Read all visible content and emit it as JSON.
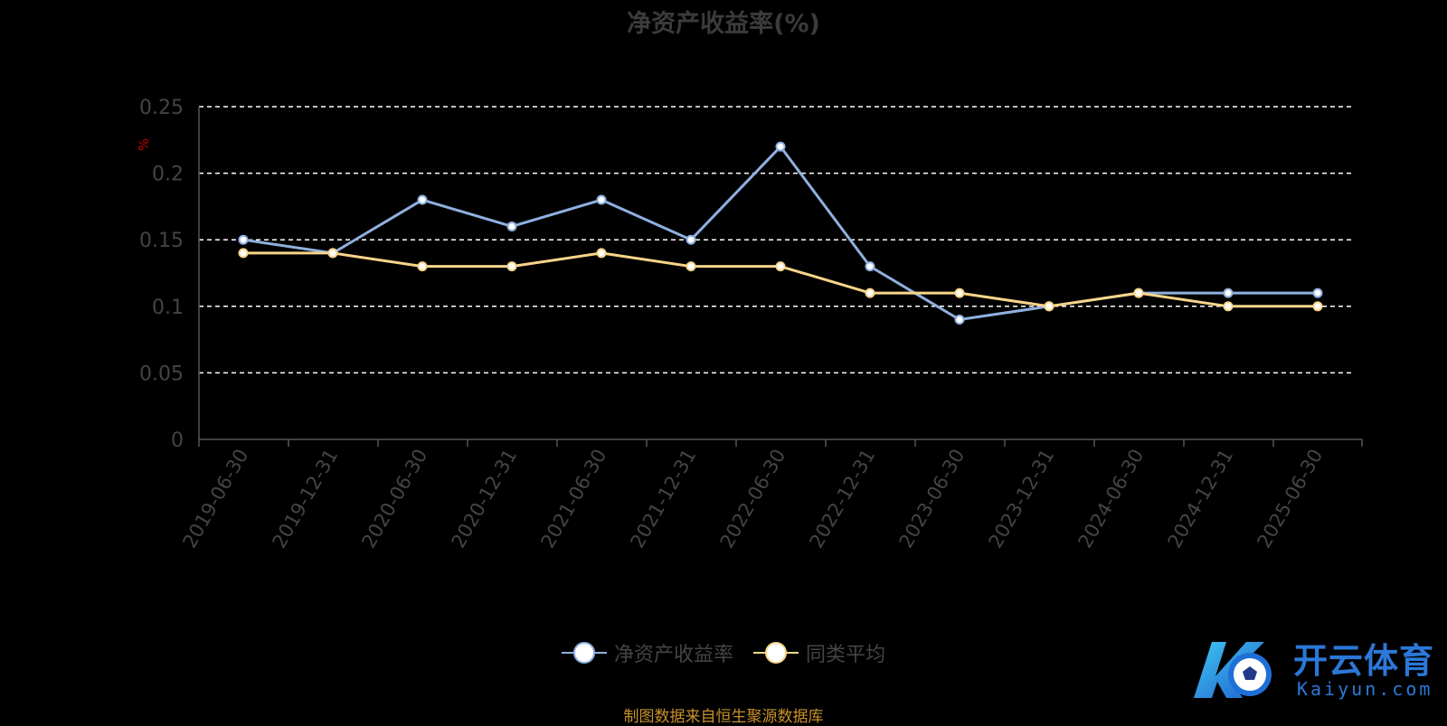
{
  "title": "净资产收益率(%)",
  "source": "制图数据来自恒生聚源数据库",
  "logo": {
    "cn": "开云体育",
    "en": "Kaiyun.com",
    "mark": "K"
  },
  "colors": {
    "series1": "#8fb0e0",
    "series2": "#f8d58a",
    "grid": "#ffffff",
    "axis": "#555555",
    "tick": "#444444",
    "unit": "#c00000"
  },
  "chart_data": {
    "type": "line",
    "title": "净资产收益率(%)",
    "ylabel": "%",
    "ylim": [
      0,
      0.25
    ],
    "yticks": [
      "0",
      "0.05",
      "0.1",
      "0.15",
      "0.2",
      "0.25"
    ],
    "categories": [
      "2019-06-30",
      "2019-12-31",
      "2020-06-30",
      "2020-12-31",
      "2021-06-30",
      "2021-12-31",
      "2022-06-30",
      "2022-12-31",
      "2023-06-30",
      "2023-12-31",
      "2024-06-30",
      "2024-12-31",
      "2025-06-30"
    ],
    "grid": true,
    "legend": "bottom",
    "series": [
      {
        "name": "净资产收益率",
        "values": [
          0.15,
          0.14,
          0.18,
          0.16,
          0.18,
          0.15,
          0.22,
          0.13,
          0.09,
          0.1,
          0.11,
          0.11,
          0.11
        ]
      },
      {
        "name": "同类平均",
        "values": [
          0.14,
          0.14,
          0.13,
          0.13,
          0.14,
          0.13,
          0.13,
          0.11,
          0.11,
          0.1,
          0.11,
          0.1,
          0.1
        ]
      }
    ]
  }
}
